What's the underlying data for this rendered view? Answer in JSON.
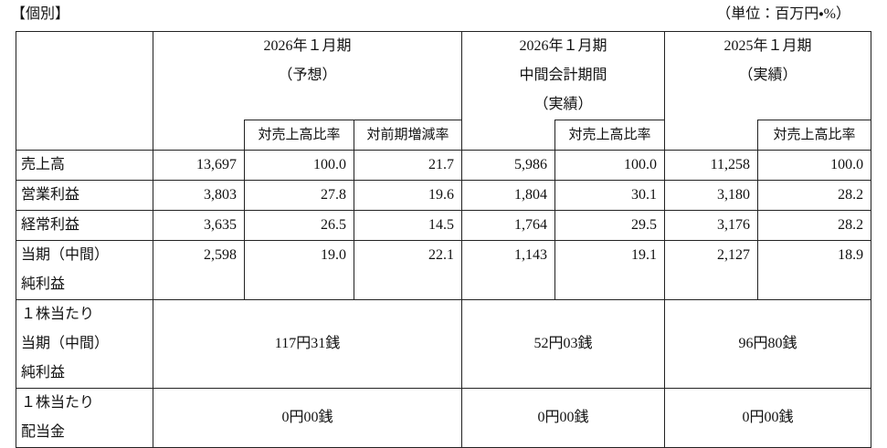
{
  "header": {
    "title": "【個別】",
    "unit": "（単位：百万円・%）"
  },
  "table": {
    "groups": [
      {
        "lines": [
          "2026年１月期",
          "（予想）"
        ],
        "subheaders": [
          "対売上高比率",
          "対前期増減率"
        ]
      },
      {
        "lines": [
          "2026年１月期",
          "中間会計期間",
          "（実績）"
        ],
        "subheaders": [
          "対売上高比率"
        ]
      },
      {
        "lines": [
          "2025年１月期",
          "（実績）"
        ],
        "subheaders": [
          "対売上高比率"
        ]
      }
    ],
    "rows": [
      {
        "label": [
          "売上高"
        ],
        "values": [
          "13,697",
          "100.0",
          "21.7",
          "5,986",
          "100.0",
          "11,258",
          "100.0"
        ]
      },
      {
        "label": [
          "営業利益"
        ],
        "values": [
          "3,803",
          "27.8",
          "19.6",
          "1,804",
          "30.1",
          "3,180",
          "28.2"
        ]
      },
      {
        "label": [
          "経常利益"
        ],
        "values": [
          "3,635",
          "26.5",
          "14.5",
          "1,764",
          "29.5",
          "3,176",
          "28.2"
        ]
      },
      {
        "label": [
          "当期（中間）",
          "純利益"
        ],
        "values": [
          "2,598",
          "19.0",
          "22.1",
          "1,143",
          "19.1",
          "2,127",
          "18.9"
        ]
      }
    ],
    "per_share_rows": [
      {
        "label": [
          "１株当たり",
          "当期（中間）",
          "純利益"
        ],
        "values": [
          "117円31銭",
          "52円03銭",
          "96円80銭"
        ]
      },
      {
        "label": [
          "１株当たり",
          "配当金"
        ],
        "values": [
          "0円00銭",
          "0円00銭",
          "0円00銭"
        ]
      }
    ]
  }
}
